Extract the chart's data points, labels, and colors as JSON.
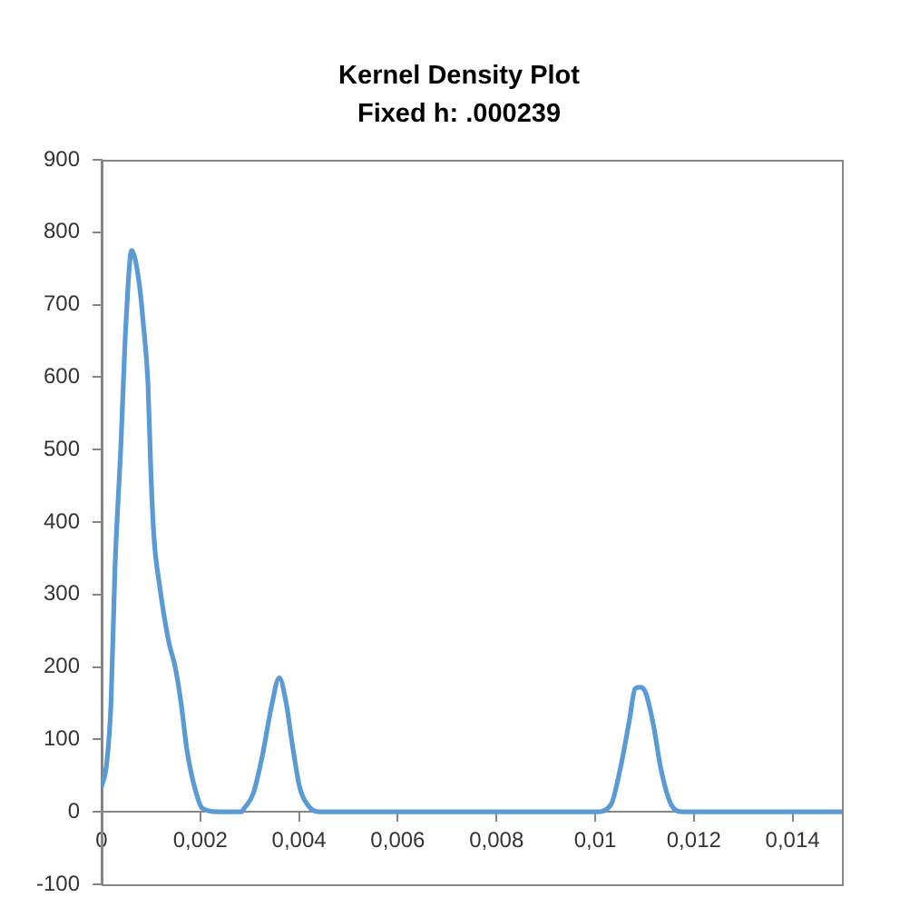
{
  "chart_data": {
    "type": "line",
    "title": "Kernel Density Plot",
    "subtitle": "Fixed h: .000239",
    "x": [
      0,
      0.0001,
      0.00019,
      0.00027,
      0.00039,
      0.00049,
      0.00061,
      0.00076,
      0.00085,
      0.00094,
      0.001,
      0.00106,
      0.00118,
      0.00136,
      0.00149,
      0.00161,
      0.00173,
      0.00188,
      0.00204,
      0.00234,
      0.00283,
      0.00289,
      0.00307,
      0.00325,
      0.00344,
      0.0036,
      0.00374,
      0.00386,
      0.00401,
      0.00417,
      0.00441,
      0.006,
      0.008,
      0.01002,
      0.01032,
      0.01051,
      0.01069,
      0.01081,
      0.01091,
      0.01102,
      0.01118,
      0.01133,
      0.01154,
      0.01178,
      0.013,
      0.015
    ],
    "values": [
      35,
      65,
      150,
      335,
      505,
      670,
      775,
      730,
      670,
      590,
      465,
      380,
      310,
      235,
      200,
      150,
      85,
      35,
      5,
      0,
      0,
      5,
      25,
      75,
      145,
      185,
      150,
      95,
      35,
      10,
      0,
      0,
      0,
      0,
      10,
      60,
      125,
      170,
      172,
      165,
      120,
      60,
      10,
      0,
      0,
      0
    ],
    "color": "#5b9bd5",
    "xlim": [
      0,
      0.015
    ],
    "xticks": [
      0,
      {
        "value": 0.002,
        "label": "0,002"
      },
      {
        "value": 0.004,
        "label": "0,004"
      },
      {
        "value": 0.006,
        "label": "0,006"
      },
      {
        "value": 0.008,
        "label": "0,008"
      },
      {
        "value": 0.01,
        "label": "0,01"
      },
      {
        "value": 0.012,
        "label": "0,012"
      },
      {
        "value": 0.014,
        "label": "0,014"
      }
    ],
    "ylim": [
      -100,
      900
    ],
    "yticks": [
      -100,
      0,
      100,
      200,
      300,
      400,
      500,
      600,
      700,
      800,
      900
    ],
    "grid": false,
    "marker": "none"
  }
}
